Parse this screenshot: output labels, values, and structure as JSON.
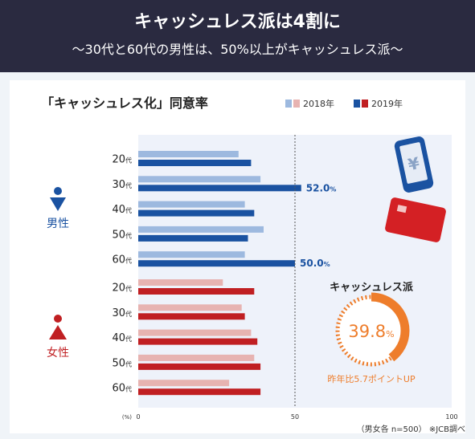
{
  "header": {
    "title": "キャッシュレス派は4割に",
    "subtitle": "〜30代と60代の男性は、50%以上がキャッシュレス派〜"
  },
  "footnote": "（男女各 n=500） ※JCB調べ",
  "colors": {
    "male_2018": "#9db9df",
    "male_2019": "#1a52a1",
    "female_2018": "#e7b3b1",
    "female_2019": "#c01f22",
    "donut": "#ee7d2b",
    "header_bg": "#2a2a40"
  },
  "labels": {
    "male": "男性",
    "female": "女性",
    "unit": "(%)",
    "value_suffix": "%"
  },
  "summary": {
    "title": "キャッシュレス派",
    "value": "39.8",
    "value_suffix": "%",
    "value_fraction": 0.398,
    "note": "昨年比5.7ポイントUP"
  },
  "chart_data": {
    "type": "bar",
    "orientation": "horizontal",
    "title": "「キャッシュレス化」同意率",
    "xlim": [
      0,
      100
    ],
    "xticks": [
      0,
      50,
      100
    ],
    "reference_line": 50,
    "legend": [
      "2018年",
      "2019年"
    ],
    "legend_position": "top-right",
    "age_suffix": "代",
    "groups": [
      {
        "name": "男性",
        "categories": [
          "20",
          "30",
          "40",
          "50",
          "60"
        ],
        "series": [
          {
            "name": "2018年",
            "values": [
              32,
              39,
              34,
              40,
              34
            ]
          },
          {
            "name": "2019年",
            "values": [
              36,
              52.0,
              37,
              35,
              50.0
            ]
          }
        ],
        "data_labels": {
          "1": "52.0",
          "4": "50.0"
        }
      },
      {
        "name": "女性",
        "categories": [
          "20",
          "30",
          "40",
          "50",
          "60"
        ],
        "series": [
          {
            "name": "2018年",
            "values": [
              27,
              33,
              36,
              37,
              29
            ]
          },
          {
            "name": "2019年",
            "values": [
              37,
              34,
              38,
              39,
              39
            ]
          }
        ],
        "data_labels": {}
      }
    ]
  }
}
